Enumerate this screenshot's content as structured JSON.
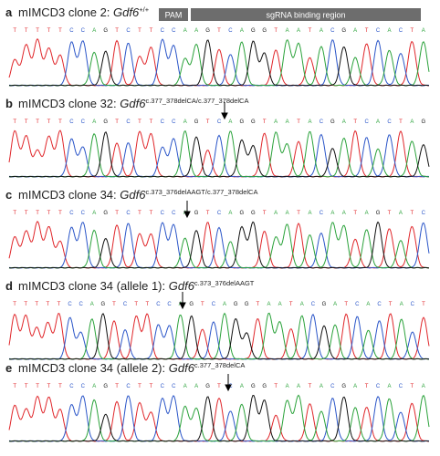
{
  "header": {
    "pam_label": "PAM",
    "sgrna_label": "sgRNA binding region"
  },
  "panels": [
    {
      "label": "a",
      "title": "mIMCD3 clone 2: ",
      "gene": "Gdf6",
      "genotype": "+/+",
      "sequence": "TTTTTCCAGTCTTCCAAGTCAGGTAATACGATCACTA"
    },
    {
      "label": "b",
      "title": "mIMCD3 clone 32: ",
      "gene": "Gdf6",
      "genotype": "c.377_378delCA/c.377_378delCA",
      "sequence": "TTTTTCCAGTCTTCCAGTCAGGTAATACGATCACTAG"
    },
    {
      "label": "c",
      "title": "mIMCD3 clone 34: ",
      "gene": "Gdf6",
      "genotype": "c.373_376delAAGT/c.377_378delCA",
      "sequence": "TTTTTCCAGTCTTCCAGTCAGGTAATACAATAGTATC"
    },
    {
      "label": "d",
      "title": "mIMCD3 clone 34 (allele 1): ",
      "gene": "Gdf6",
      "genotype": "c.373_376delAAGT",
      "sequence": "TTTTTCCAGTCTTCCAGTCAGGTAATACGATCACTACT"
    },
    {
      "label": "e",
      "title": "mIMCD3 clone 34 (allele 2): ",
      "gene": "Gdf6",
      "genotype": "c.377_378delCA",
      "sequence": "TTTTTCCAGTCTTCCAAGTCAGGTAATACGATCACTA"
    }
  ]
}
